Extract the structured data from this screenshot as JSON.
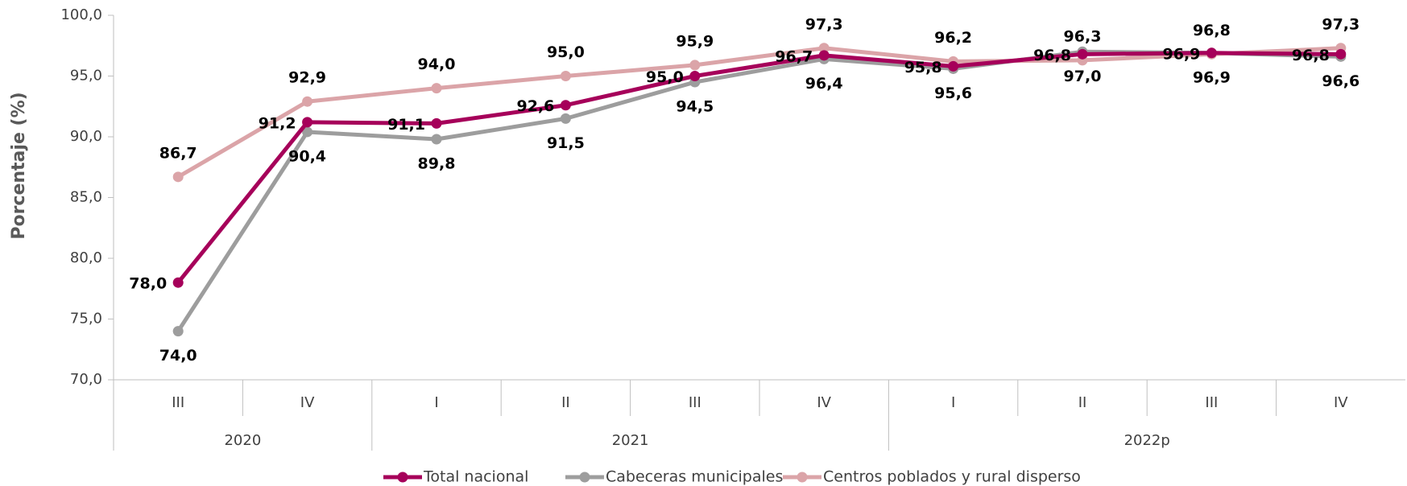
{
  "chart_data": {
    "type": "line",
    "y_axis_label": "Porcentaje (%)",
    "categories": [
      "III",
      "IV",
      "I",
      "II",
      "III",
      "IV",
      "I",
      "II",
      "III",
      "IV"
    ],
    "groups": [
      {
        "label": "2020",
        "count": 2
      },
      {
        "label": "2021",
        "count": 4
      },
      {
        "label": "2022p",
        "count": 4
      }
    ],
    "ylim": [
      70,
      100
    ],
    "yticks": [
      {
        "value": 70,
        "label": "70,0"
      },
      {
        "value": 75,
        "label": "75,0"
      },
      {
        "value": 80,
        "label": "80,0"
      },
      {
        "value": 85,
        "label": "85,0"
      },
      {
        "value": 90,
        "label": "90,0"
      },
      {
        "value": 95,
        "label": "95,0"
      },
      {
        "value": 100,
        "label": "100,0"
      }
    ],
    "series": [
      {
        "name": "Total nacional",
        "color": "#a6005a",
        "values": [
          78.0,
          91.2,
          91.1,
          92.6,
          95.0,
          96.7,
          95.8,
          96.8,
          96.9,
          96.8
        ],
        "value_labels": [
          "78,0",
          "91,2",
          "91,1",
          "92,6",
          "95,0",
          "96,7",
          "95,8",
          "96,8",
          "96,9",
          "96,8"
        ]
      },
      {
        "name": "Cabeceras municipales",
        "color": "#9d9d9d",
        "values": [
          74.0,
          90.4,
          89.8,
          91.5,
          94.5,
          96.4,
          95.6,
          97.0,
          96.9,
          96.6
        ],
        "value_labels": [
          "74,0",
          "90,4",
          "89,8",
          "91,5",
          "94,5",
          "96,4",
          "95,6",
          "97,0",
          "96,9",
          "96,6"
        ]
      },
      {
        "name": "Centros poblados y rural disperso",
        "color": "#dba4a8",
        "values": [
          86.7,
          92.9,
          94.0,
          95.0,
          95.9,
          97.3,
          96.2,
          96.3,
          96.8,
          97.3
        ],
        "value_labels": [
          "86,7",
          "92,9",
          "94,0",
          "95,0",
          "95,9",
          "97,3",
          "96,2",
          "96,3",
          "96,8",
          "97,3"
        ]
      }
    ]
  }
}
